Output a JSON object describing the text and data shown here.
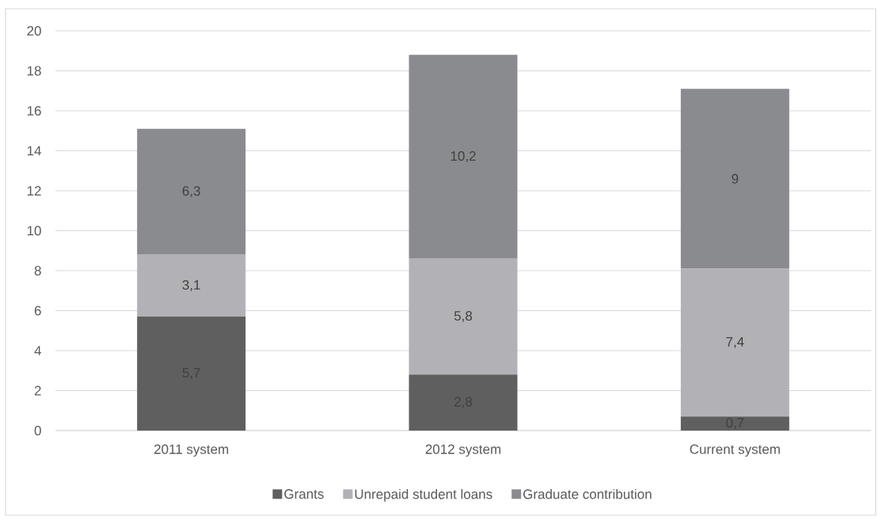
{
  "chart_data": {
    "type": "bar",
    "stacked": true,
    "categories": [
      "2011 system",
      "2012 system",
      "Current system"
    ],
    "series": [
      {
        "name": "Grants",
        "color": "#5f5f5f",
        "values": [
          5.7,
          2.8,
          0.7
        ],
        "value_labels": [
          "5,7",
          "2,8",
          "0,7"
        ]
      },
      {
        "name": "Unrepaid student loans",
        "color": "#b2b2b6",
        "values": [
          3.1,
          5.8,
          7.4
        ],
        "value_labels": [
          "3,1",
          "5,8",
          "7,4"
        ]
      },
      {
        "name": "Graduate contribution",
        "color": "#8a8b8f",
        "values": [
          6.3,
          10.2,
          9
        ],
        "value_labels": [
          "6,3",
          "10,2",
          "9"
        ]
      }
    ],
    "ylim": [
      0,
      20
    ],
    "yticks": [
      0,
      2,
      4,
      6,
      8,
      10,
      12,
      14,
      16,
      18,
      20
    ],
    "grid": "y",
    "legend": "bottom"
  }
}
